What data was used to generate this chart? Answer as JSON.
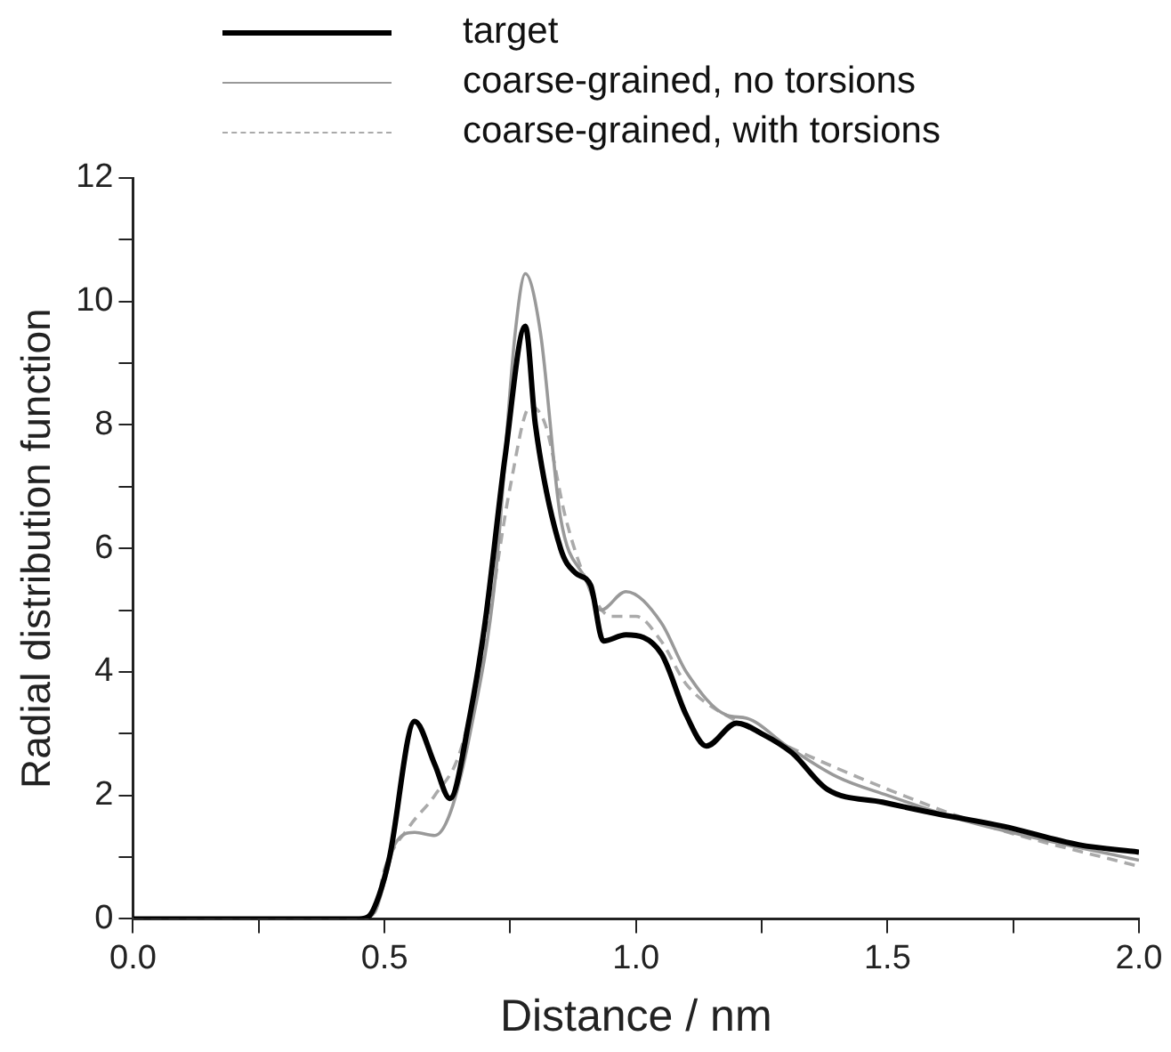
{
  "chart_data": {
    "type": "line",
    "xlabel": "Distance / nm",
    "ylabel": "Radial distribution function",
    "xlim": [
      0,
      2
    ],
    "ylim": [
      0,
      12
    ],
    "xticks": [
      {
        "value": 0,
        "label": "0.0"
      },
      {
        "value": 0.25,
        "label": null
      },
      {
        "value": 0.5,
        "label": "0.5"
      },
      {
        "value": 0.75,
        "label": null
      },
      {
        "value": 1,
        "label": "1.0"
      },
      {
        "value": 1.25,
        "label": null
      },
      {
        "value": 1.5,
        "label": "1.5"
      },
      {
        "value": 1.75,
        "label": null
      },
      {
        "value": 2,
        "label": "2.0"
      }
    ],
    "yticks": [
      0,
      {
        "value": 1,
        "label": null
      },
      2,
      {
        "value": 3,
        "label": null
      },
      4,
      {
        "value": 5,
        "label": null
      },
      6,
      {
        "value": 7,
        "label": null
      },
      8,
      {
        "value": 9,
        "label": null
      },
      10,
      {
        "value": 11,
        "label": null
      },
      12
    ],
    "grid": false,
    "legend": "top",
    "marker": "none",
    "series": [
      {
        "name": "target",
        "color": "#000000",
        "line_style": "solid",
        "x": [
          0,
          0.45,
          0.47,
          0.49,
          0.51,
          0.56,
          0.6,
          0.63,
          0.67,
          0.7,
          0.74,
          0.78,
          0.8,
          0.85,
          0.88,
          0.91,
          0.935,
          0.98,
          1.05,
          1.1,
          1.14,
          1.2,
          1.25,
          1.31,
          1.38,
          1.49,
          1.6,
          1.73,
          1.88,
          2.0
        ],
        "values": [
          0,
          0,
          0.05,
          0.4,
          1.0,
          3.2,
          2.5,
          1.95,
          3.3,
          4.8,
          7.5,
          9.6,
          8.0,
          6.0,
          5.6,
          5.4,
          4.5,
          4.6,
          4.3,
          3.3,
          2.8,
          3.17,
          3.0,
          2.69,
          2.1,
          1.89,
          1.7,
          1.5,
          1.2,
          1.08
        ]
      },
      {
        "name": "coarse-grained, no torsions",
        "color": "#999999",
        "line_style": "solid",
        "x": [
          0,
          0.45,
          0.48,
          0.5,
          0.52,
          0.56,
          0.6,
          0.63,
          0.67,
          0.72,
          0.76,
          0.78,
          0.81,
          0.85,
          0.9,
          0.93,
          0.98,
          1.05,
          1.1,
          1.18,
          1.22,
          1.3,
          1.4,
          1.5,
          1.65,
          1.8,
          2.0
        ],
        "values": [
          0,
          0,
          0.1,
          0.6,
          1.2,
          1.4,
          1.35,
          1.7,
          3.0,
          5.5,
          9.5,
          10.45,
          9.5,
          6.5,
          5.5,
          5.0,
          5.3,
          4.8,
          4.0,
          3.3,
          3.25,
          2.8,
          2.3,
          2.0,
          1.6,
          1.3,
          0.95
        ]
      },
      {
        "name": "coarse-grained, with torsions",
        "color": "#aaaaaa",
        "line_style": "dashed",
        "x": [
          0,
          0.45,
          0.48,
          0.5,
          0.55,
          0.6,
          0.65,
          0.7,
          0.75,
          0.79,
          0.82,
          0.86,
          0.9,
          0.95,
          1.0,
          1.05,
          1.1,
          1.2,
          1.3,
          1.5,
          1.7,
          2.0
        ],
        "values": [
          0,
          0,
          0.1,
          0.8,
          1.5,
          2.0,
          2.7,
          4.5,
          7.0,
          8.3,
          8.0,
          6.5,
          5.5,
          4.9,
          4.9,
          4.5,
          3.8,
          3.2,
          2.8,
          2.1,
          1.5,
          0.85
        ]
      }
    ]
  }
}
